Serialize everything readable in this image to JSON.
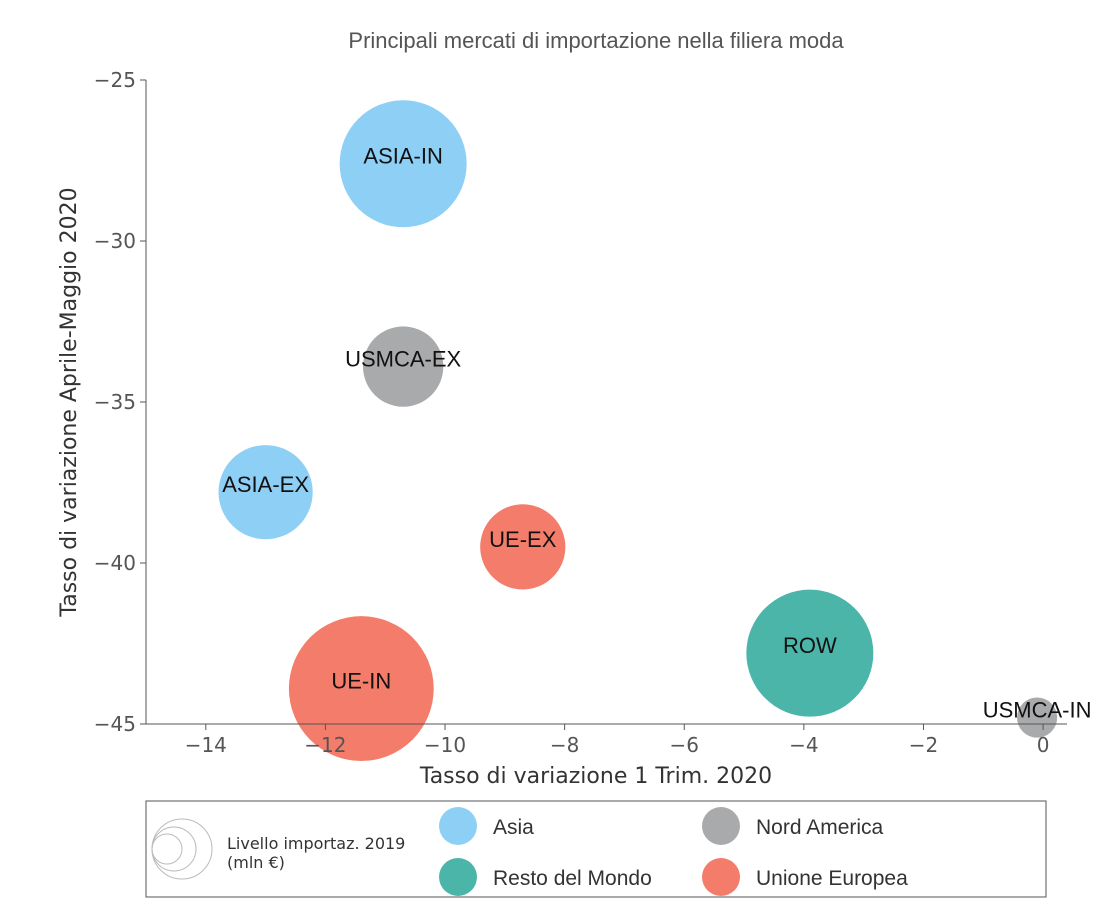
{
  "chart_data": {
    "type": "scatter",
    "title": "Principali mercati di importazione nella filiera moda",
    "xlabel": "Tasso di variazione 1 Trim. 2020",
    "ylabel": "Tasso di variazione Aprile-Maggio 2020",
    "xlim": [
      -15,
      0.4
    ],
    "ylim": [
      -45,
      -25
    ],
    "xticks": [
      -14,
      -12,
      -10,
      -8,
      -6,
      -4,
      -2,
      0
    ],
    "yticks": [
      -25,
      -30,
      -35,
      -40,
      -45
    ],
    "grid": false,
    "legend_position": "bottom",
    "size_legend_label": "Livello importaz. 2019",
    "size_legend_unit": "(mln €)",
    "categories": [
      {
        "name": "Asia",
        "color": "#8ecff5"
      },
      {
        "name": "Nord America",
        "color": "#a9aaac"
      },
      {
        "name": "Resto del Mondo",
        "color": "#4cb5aa"
      },
      {
        "name": "Unione Europea",
        "color": "#f47c6a"
      }
    ],
    "points": [
      {
        "label": "ASIA-IN",
        "x": -10.7,
        "y": -27.6,
        "size": 100,
        "category": "Asia"
      },
      {
        "label": "USMCA-EX",
        "x": -10.7,
        "y": -33.9,
        "size": 40,
        "category": "Nord America"
      },
      {
        "label": "ASIA-EX",
        "x": -13.0,
        "y": -37.8,
        "size": 55,
        "category": "Asia"
      },
      {
        "label": "UE-EX",
        "x": -8.7,
        "y": -39.5,
        "size": 45,
        "category": "Unione Europea"
      },
      {
        "label": "UE-IN",
        "x": -11.4,
        "y": -43.9,
        "size": 130,
        "category": "Unione Europea"
      },
      {
        "label": "ROW",
        "x": -3.9,
        "y": -42.8,
        "size": 100,
        "category": "Resto del Mondo"
      },
      {
        "label": "USMCA-IN",
        "x": -0.1,
        "y": -44.8,
        "size": 10,
        "category": "Nord America"
      }
    ]
  }
}
